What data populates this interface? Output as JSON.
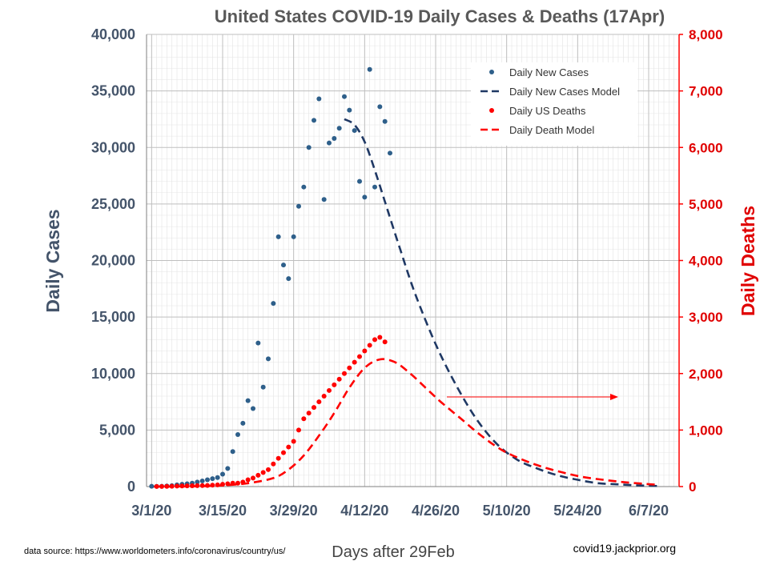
{
  "chart_data": {
    "type": "scatter",
    "title": "United States COVID-19 Daily Cases & Deaths (17Apr)",
    "xlabel": "Days after 29Feb",
    "ylabel_left": "Daily Cases",
    "ylabel_right": "Daily Deaths",
    "xlim": [
      0,
      105
    ],
    "ylim_left": [
      0,
      40000
    ],
    "ylim_right": [
      0,
      8000
    ],
    "x_ticks": [
      1,
      15,
      29,
      43,
      57,
      71,
      85,
      99
    ],
    "x_tick_labels": [
      "3/1/20",
      "3/15/20",
      "3/29/20",
      "4/12/20",
      "4/26/20",
      "5/10/20",
      "5/24/20",
      "6/7/20"
    ],
    "y_left_ticks": [
      0,
      5000,
      10000,
      15000,
      20000,
      25000,
      30000,
      35000,
      40000
    ],
    "y_left_tick_labels": [
      "0",
      "5,000",
      "10,000",
      "15,000",
      "20,000",
      "25,000",
      "30,000",
      "35,000",
      "40,000"
    ],
    "y_right_ticks": [
      0,
      1000,
      2000,
      3000,
      4000,
      5000,
      6000,
      7000,
      8000
    ],
    "y_right_tick_labels": [
      "0",
      "1,000",
      "2,000",
      "3,000",
      "4,000",
      "5,000",
      "6,000",
      "7,000",
      "8,000"
    ],
    "grid": true,
    "legend_position": "top-right",
    "legend": [
      "Daily New Cases",
      "Daily New Cases Model",
      "Daily US Deaths",
      "Daily Death Model"
    ],
    "colors": {
      "cases": "#2e5f8a",
      "cases_model": "#1f3864",
      "deaths": "#ff0000",
      "death_model": "#ff0000",
      "axis_left": "#44546a",
      "axis_right": "#e00000"
    },
    "series": [
      {
        "name": "Daily New Cases",
        "axis": "left",
        "x": [
          1,
          2,
          3,
          4,
          5,
          6,
          7,
          8,
          9,
          10,
          11,
          12,
          13,
          14,
          15,
          16,
          17,
          18,
          19,
          20,
          21,
          22,
          23,
          24,
          25,
          26,
          27,
          28,
          29,
          30,
          31,
          32,
          33,
          34,
          35,
          36,
          37,
          38,
          39,
          40,
          41,
          42,
          43,
          44,
          45,
          46,
          47,
          48
        ],
        "y": [
          30,
          20,
          30,
          50,
          80,
          150,
          200,
          250,
          300,
          400,
          500,
          600,
          700,
          800,
          1100,
          1600,
          3100,
          4600,
          5600,
          7600,
          6900,
          12700,
          8800,
          11300,
          16200,
          22100,
          19600,
          18400,
          22100,
          24800,
          26500,
          30000,
          32400,
          34300,
          25400,
          30400,
          30800,
          31700,
          34500,
          33300,
          31500,
          27000,
          25600,
          36900,
          26500,
          33600,
          32300,
          29500
        ]
      },
      {
        "name": "Daily New Cases Model",
        "axis": "left",
        "x": [
          39,
          41,
          43,
          45,
          47,
          50,
          53,
          57,
          61,
          65,
          69,
          73,
          77,
          81,
          85,
          89,
          93,
          97,
          101
        ],
        "y": [
          32500,
          32000,
          30500,
          28000,
          25200,
          21000,
          17000,
          12600,
          9000,
          6000,
          3800,
          2400,
          1600,
          1000,
          600,
          300,
          200,
          100,
          50
        ]
      },
      {
        "name": "Daily US Deaths",
        "axis": "right",
        "x": [
          2,
          3,
          4,
          5,
          6,
          7,
          8,
          9,
          10,
          11,
          12,
          13,
          14,
          15,
          16,
          17,
          18,
          19,
          20,
          21,
          22,
          23,
          24,
          25,
          26,
          27,
          28,
          29,
          30,
          31,
          32,
          33,
          34,
          35,
          36,
          37,
          38,
          39,
          40,
          41,
          42,
          43,
          44,
          45,
          46,
          47
        ],
        "y": [
          1,
          2,
          3,
          5,
          8,
          10,
          12,
          14,
          16,
          18,
          20,
          25,
          30,
          40,
          50,
          60,
          60,
          80,
          120,
          150,
          200,
          250,
          300,
          400,
          500,
          600,
          700,
          800,
          1000,
          1200,
          1300,
          1400,
          1500,
          1600,
          1700,
          1800,
          1900,
          2000,
          2100,
          2200,
          2300,
          2400,
          2500,
          2600,
          2640,
          2560
        ]
      },
      {
        "name": "Daily Death Model",
        "axis": "right",
        "x": [
          1,
          5,
          10,
          15,
          20,
          25,
          28,
          31,
          34,
          37,
          40,
          43,
          46,
          49,
          52,
          55,
          58,
          62,
          66,
          70,
          74,
          78,
          82,
          86,
          90,
          94,
          98,
          101
        ],
        "y": [
          0,
          2,
          5,
          20,
          60,
          150,
          300,
          550,
          900,
          1300,
          1750,
          2100,
          2250,
          2200,
          2000,
          1750,
          1500,
          1200,
          900,
          650,
          480,
          350,
          250,
          170,
          120,
          80,
          50,
          30
        ]
      }
    ],
    "annotations": {
      "source": "data source: https://www.worldometers.info/coronavirus/country/us/",
      "credit": "covid19.jackprior.org"
    }
  }
}
